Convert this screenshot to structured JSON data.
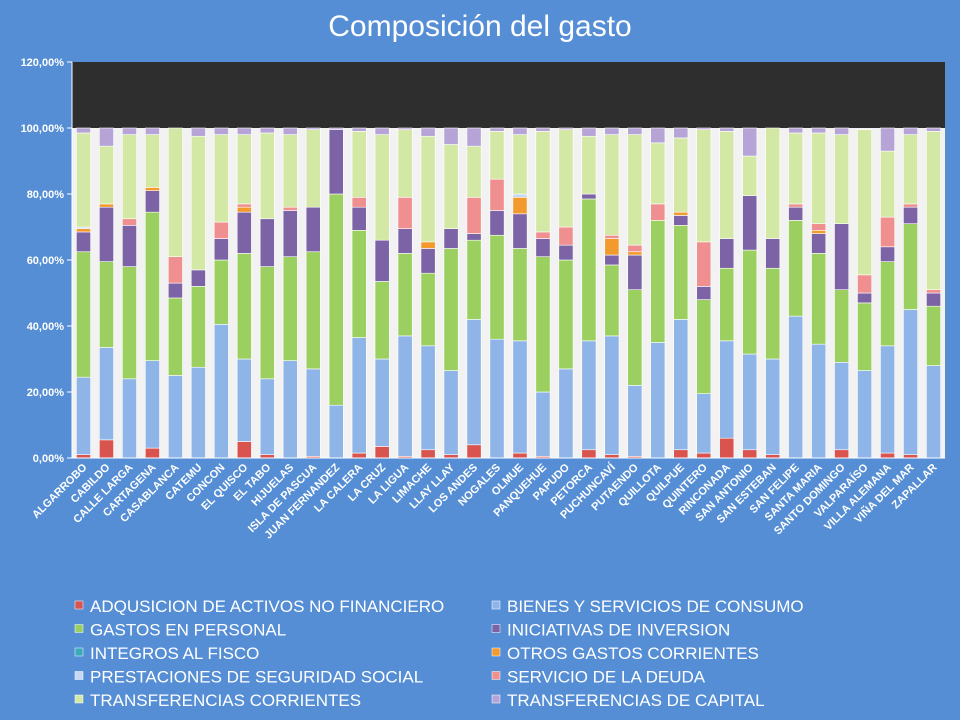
{
  "chart_data": {
    "type": "bar",
    "stacked": true,
    "title": "Composición del gasto",
    "xlabel": "",
    "ylabel": "",
    "ylim": [
      0,
      120
    ],
    "yticks": [
      "0,00%",
      "20,00%",
      "40,00%",
      "60,00%",
      "80,00%",
      "100,00%",
      "120,00%"
    ],
    "grid": false,
    "legend_position": "bottom",
    "categories": [
      "ALGARROBO",
      "CABILDO",
      "CALLE LARGA",
      "CARTAGENA",
      "CASABLANCA",
      "CATEMU",
      "CONCON",
      "EL QUISCO",
      "EL TABO",
      "HIJUELAS",
      "ISLA DE PASCUA",
      "JUAN FERNANDEZ",
      "LA CALERA",
      "LA CRUZ",
      "LA LIGUA",
      "LIMACHE",
      "LLAY LLAY",
      "LOS ANDES",
      "NOGALES",
      "OLMUE",
      "PANQUEHUE",
      "PAPUDO",
      "PETORCA",
      "PUCHUNCAVÍ",
      "PUTAENDO",
      "QUILLOTA",
      "QUILPUE",
      "QUINTERO",
      "RINCONADA",
      "SAN ANTONIO",
      "SAN ESTEBAN",
      "SAN FELIPE",
      "SANTA MARIA",
      "SANTO DOMINGO",
      "VALPARAÍSO",
      "VILLA ALEMANA",
      "VIÑA DEL MAR",
      "ZAPALLAR"
    ],
    "series": [
      {
        "name": "ADQUSICION DE ACTIVOS NO FINANCIERO",
        "color": "#d9534f",
        "values": [
          1,
          5.5,
          0,
          3,
          0,
          0,
          0,
          5,
          1,
          0,
          0.5,
          0,
          1.5,
          3.5,
          0.5,
          2.5,
          1,
          4,
          0,
          1.5,
          0.5,
          0,
          2.5,
          1,
          0.5,
          0,
          2.5,
          1.5,
          6,
          2.5,
          1,
          0,
          0,
          2.5,
          0,
          1.5,
          1,
          0
        ]
      },
      {
        "name": "BIENES Y SERVICIOS DE CONSUMO",
        "color": "#8fb4e8",
        "values": [
          23.5,
          28,
          24,
          26.5,
          25,
          27.5,
          40.5,
          25,
          23,
          29.5,
          26.5,
          16,
          35,
          26.5,
          36.5,
          31.5,
          25.5,
          38,
          36,
          34,
          19.5,
          27,
          33,
          36,
          21.5,
          35,
          39.5,
          18,
          29.5,
          29,
          29,
          43,
          34.5,
          26.5,
          26.5,
          32.5,
          44,
          28
        ]
      },
      {
        "name": "GASTOS EN PERSONAL",
        "color": "#9bcf5f",
        "values": [
          38,
          26,
          34,
          45,
          23.5,
          24.5,
          19.5,
          32,
          34,
          31.5,
          35.5,
          64,
          32.5,
          23.5,
          25,
          22,
          37,
          24,
          31.5,
          28,
          41,
          33,
          43,
          21.5,
          29,
          37,
          28.5,
          28.5,
          22,
          31.5,
          27.5,
          29,
          27.5,
          22,
          20.5,
          25.5,
          26,
          18
        ]
      },
      {
        "name": "INICIATIVAS DE INVERSION",
        "color": "#7b63a6",
        "values": [
          6,
          16.5,
          12.5,
          6.5,
          4.5,
          5,
          6.5,
          12.5,
          14.5,
          14,
          13.5,
          19.5,
          7,
          12.5,
          7.5,
          7.5,
          6,
          2,
          7.5,
          10.5,
          5.5,
          4.5,
          1.5,
          3,
          10.5,
          0,
          3,
          4,
          9,
          16.5,
          9,
          4,
          6,
          20,
          3,
          4.5,
          5,
          4
        ]
      },
      {
        "name": "INTEGROS AL FISCO",
        "color": "#3aa9b8",
        "values": [
          0,
          0,
          0,
          0,
          0,
          0,
          0,
          0,
          0,
          0,
          0,
          0,
          0,
          0,
          0,
          0,
          0,
          0,
          0,
          0,
          0,
          0,
          0,
          0,
          0,
          0,
          0,
          0,
          0,
          0,
          0,
          0,
          0,
          0,
          0,
          0,
          0,
          0
        ]
      },
      {
        "name": "OTROS GASTOS CORRIENTES",
        "color": "#f39a2e",
        "values": [
          1,
          1,
          0,
          1,
          0,
          0,
          0,
          1.5,
          0,
          0,
          0,
          0,
          0,
          0,
          0,
          2,
          0,
          0,
          0,
          5,
          0,
          0,
          0,
          5,
          1,
          0,
          1,
          0,
          0,
          0,
          0,
          0,
          1,
          0,
          0,
          0,
          0,
          0
        ]
      },
      {
        "name": "PRESTACIONES DE SEGURIDAD SOCIAL",
        "color": "#c8d8f2",
        "values": [
          0.5,
          0,
          0,
          0,
          0,
          0,
          0,
          0,
          0,
          0,
          0,
          0,
          0,
          0,
          0,
          0,
          0,
          0,
          0,
          1,
          0,
          0,
          0,
          0,
          0,
          0,
          0,
          0,
          0,
          0,
          0,
          0,
          0,
          0,
          0,
          0,
          0,
          0
        ]
      },
      {
        "name": "SERVICIO DE LA DEUDA",
        "color": "#f08f8f",
        "values": [
          0,
          0,
          2,
          0,
          8,
          0,
          5,
          1,
          0,
          1,
          0,
          0,
          3,
          0,
          9.5,
          0,
          0,
          11,
          9.5,
          0,
          2,
          5.5,
          0,
          1,
          2,
          5,
          0,
          13.5,
          0,
          0,
          0,
          1,
          2,
          0,
          5.5,
          9,
          1,
          1
        ]
      },
      {
        "name": "TRANSFERENCIAS CORRIENTES",
        "color": "#d4e8a6",
        "values": [
          28.5,
          17.5,
          25.5,
          16,
          39,
          40.5,
          26.5,
          21,
          26,
          22,
          23.5,
          0,
          20,
          32,
          20.5,
          32,
          25.5,
          15.5,
          14.5,
          18,
          30.5,
          29.5,
          17.5,
          30.5,
          33.5,
          18.5,
          22.5,
          34,
          32.5,
          12,
          33.5,
          21.5,
          27.5,
          27,
          44,
          20,
          21,
          48
        ]
      },
      {
        "name": "TRANSFERENCIAS DE CAPITAL",
        "color": "#b6a4d6",
        "values": [
          1.5,
          5.5,
          2,
          2,
          0,
          2.5,
          2,
          2,
          1.5,
          2,
          0.5,
          0.5,
          1,
          2,
          0.5,
          2.5,
          5,
          5.5,
          1,
          2,
          1,
          0.5,
          2.5,
          2,
          2,
          4.5,
          3,
          0.5,
          1,
          8.5,
          0,
          1.5,
          1.5,
          2,
          0,
          7,
          2,
          1
        ]
      }
    ]
  }
}
